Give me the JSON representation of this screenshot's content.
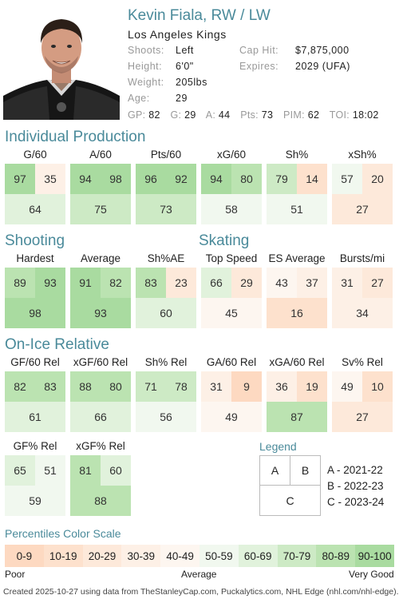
{
  "player": {
    "name": "Kevin Fiala, RW / LW",
    "team": "Los Angeles Kings",
    "info_left": [
      {
        "label": "Shoots:",
        "value": "Left"
      },
      {
        "label": "Height:",
        "value": "6'0\""
      },
      {
        "label": "Weight:",
        "value": "205lbs"
      },
      {
        "label": "Age:",
        "value": "29"
      }
    ],
    "info_right": [
      {
        "label": "Cap Hit:",
        "value": "$7,875,000"
      },
      {
        "label": "Expires:",
        "value": "2029 (UFA)"
      }
    ],
    "stat_line": [
      {
        "label": "GP:",
        "value": "82"
      },
      {
        "label": "G:",
        "value": "29"
      },
      {
        "label": "A:",
        "value": "44"
      },
      {
        "label": "Pts:",
        "value": "73"
      },
      {
        "label": "PIM:",
        "value": "62"
      },
      {
        "label": "TOI:",
        "value": "18:02"
      }
    ]
  },
  "sections": {
    "individual": "Individual Production",
    "shooting": "Shooting",
    "skating": "Skating",
    "onice": "On-Ice Relative"
  },
  "metrics": {
    "individual": [
      {
        "label": "G/60",
        "a": 97,
        "b": 35,
        "c": 64
      },
      {
        "label": "A/60",
        "a": 94,
        "b": 98,
        "c": 75
      },
      {
        "label": "Pts/60",
        "a": 96,
        "b": 92,
        "c": 73
      },
      {
        "label": "xG/60",
        "a": 94,
        "b": 80,
        "c": 58
      },
      {
        "label": "Sh%",
        "a": 79,
        "b": 14,
        "c": 51
      },
      {
        "label": "xSh%",
        "a": 57,
        "b": 20,
        "c": 27
      }
    ],
    "shooting": [
      {
        "label": "Hardest",
        "a": 89,
        "b": 93,
        "c": 98
      },
      {
        "label": "Average",
        "a": 91,
        "b": 82,
        "c": 93
      },
      {
        "label": "Sh%AE",
        "a": 83,
        "b": 23,
        "c": 60
      }
    ],
    "skating": [
      {
        "label": "Top Speed",
        "a": 66,
        "b": 29,
        "c": 45
      },
      {
        "label": "ES Average",
        "a": 43,
        "b": 37,
        "c": 16
      },
      {
        "label": "Bursts/mi",
        "a": 31,
        "b": 27,
        "c": 34
      }
    ],
    "onice_row1": [
      {
        "label": "GF/60 Rel",
        "a": 82,
        "b": 83,
        "c": 61
      },
      {
        "label": "xGF/60 Rel",
        "a": 88,
        "b": 80,
        "c": 66
      },
      {
        "label": "Sh% Rel",
        "a": 71,
        "b": 78,
        "c": 56
      },
      {
        "label": "GA/60 Rel",
        "a": 31,
        "b": 9,
        "c": 49
      },
      {
        "label": "xGA/60 Rel",
        "a": 36,
        "b": 19,
        "c": 87
      },
      {
        "label": "Sv% Rel",
        "a": 49,
        "b": 10,
        "c": 27
      }
    ],
    "onice_row2": [
      {
        "label": "GF% Rel",
        "a": 65,
        "b": 51,
        "c": 59
      },
      {
        "label": "xGF% Rel",
        "a": 81,
        "b": 60,
        "c": 88
      }
    ]
  },
  "legend": {
    "title": "Legend",
    "a": "A",
    "b": "B",
    "c": "C",
    "items": [
      "A - 2021-22",
      "B - 2022-23",
      "C - 2023-24"
    ]
  },
  "scale": {
    "title": "Percentiles Color Scale",
    "bins": [
      "0-9",
      "10-19",
      "20-29",
      "30-39",
      "40-49",
      "50-59",
      "60-69",
      "70-79",
      "80-89",
      "90-100"
    ],
    "poor": "Poor",
    "average": "Average",
    "very_good": "Very Good"
  },
  "footer": "Created 2025-10-27 using data from TheStanleyCap.com, Puckalytics.com, NHL Edge (nhl.com/nhl-edge)."
}
